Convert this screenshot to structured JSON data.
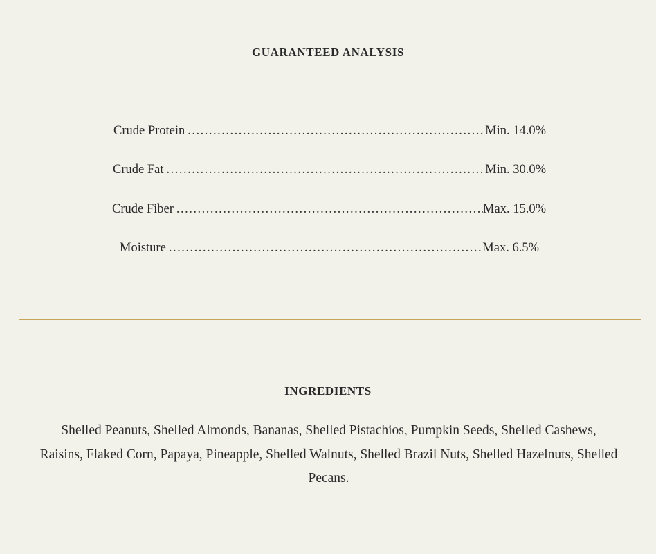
{
  "guaranteed_analysis": {
    "title": "GUARANTEED ANALYSIS",
    "rows": [
      {
        "label": "Crude Protein",
        "value": "Min. 14.0%"
      },
      {
        "label": "Crude Fat",
        "value": "Min. 30.0%"
      },
      {
        "label": "Crude Fiber",
        "value": "Max. 15.0%"
      },
      {
        "label": "Moisture",
        "value": "Max. 6.5%"
      }
    ]
  },
  "divider_color": "#c8a458",
  "ingredients": {
    "title": "INGREDIENTS",
    "text": "Shelled Peanuts, Shelled Almonds, Bananas, Shelled Pistachios, Pumpkin Seeds, Shelled Cashews, Raisins, Flaked Corn, Papaya, Pineapple, Shelled Walnuts, Shelled Brazil Nuts, Shelled Hazelnuts, Shelled Pecans."
  }
}
